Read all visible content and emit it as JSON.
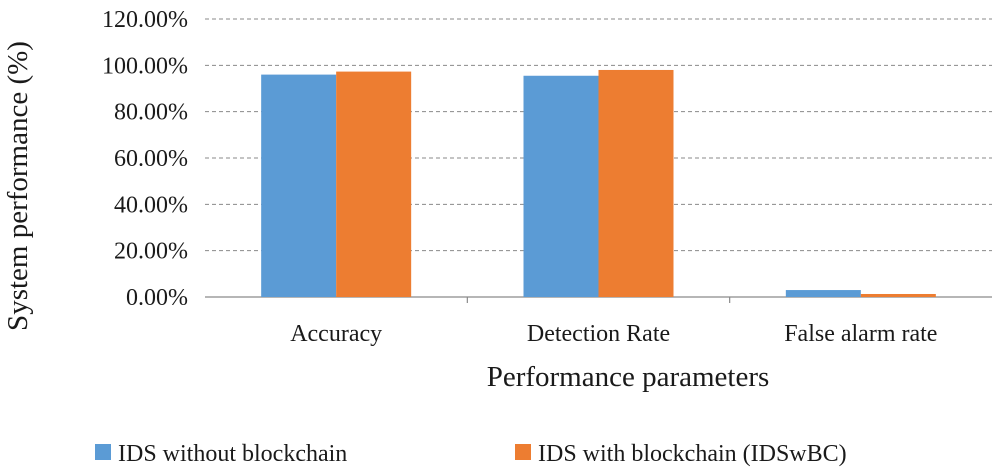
{
  "chart_data": {
    "type": "bar",
    "title": "",
    "xlabel": "Performance parameters",
    "ylabel": "System performance (%)",
    "categories": [
      "Accuracy",
      "Detection Rate",
      "False alarm rate"
    ],
    "series": [
      {
        "name": "IDS without blockchain",
        "color": "#5b9bd5",
        "values": [
          96.0,
          95.5,
          3.0
        ]
      },
      {
        "name": "IDS with blockchain (IDSwBC)",
        "color": "#ed7d31",
        "values": [
          97.3,
          98.0,
          1.3
        ]
      }
    ],
    "ylim": [
      0,
      120
    ],
    "yticks": [
      0,
      20,
      40,
      60,
      80,
      100,
      120
    ],
    "ytick_labels": [
      "0.00%",
      "20.00%",
      "40.00%",
      "60.00%",
      "80.00%",
      "100.00%",
      "120.00%"
    ],
    "grid": true,
    "legend_position": "bottom"
  }
}
